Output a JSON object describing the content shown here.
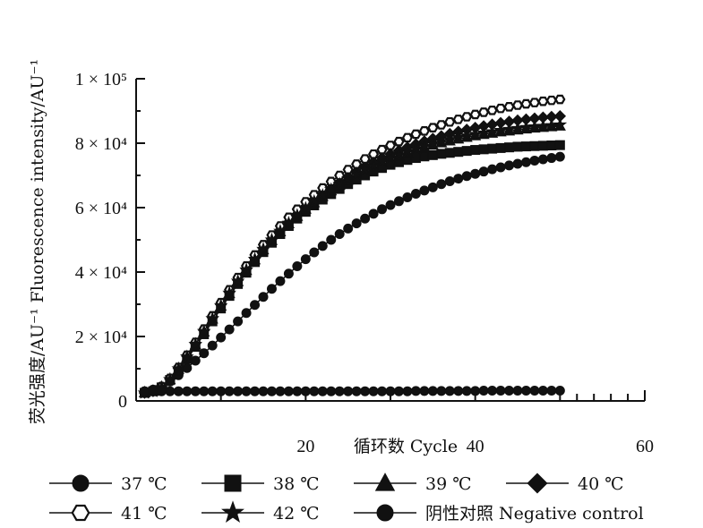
{
  "chart_data": {
    "type": "line",
    "ylabel": "荧光强度/AU⁻¹ Fluorescence intensity/AU⁻¹",
    "xlabel": "循环数 Cycle",
    "xlim": [
      0,
      60
    ],
    "ylim": [
      0,
      100000
    ],
    "y_ticks": [
      {
        "value": 0,
        "label": "0"
      },
      {
        "value": 20000,
        "label": "2 × 10⁴"
      },
      {
        "value": 40000,
        "label": "4 × 10⁴"
      },
      {
        "value": 60000,
        "label": "6 × 10⁴"
      },
      {
        "value": 80000,
        "label": "8 × 10⁴"
      },
      {
        "value": 100000,
        "label": "1 × 10⁵"
      }
    ],
    "x_ticks": [
      {
        "value": 20,
        "label": "20"
      },
      {
        "value": 40,
        "label": "40"
      },
      {
        "value": 60,
        "label": "60"
      }
    ],
    "grid": false,
    "legend_placement": "bottom",
    "x": [
      1,
      2,
      3,
      4,
      5,
      6,
      7,
      8,
      9,
      10,
      11,
      12,
      13,
      14,
      15,
      16,
      17,
      18,
      19,
      20,
      21,
      22,
      23,
      24,
      25,
      26,
      27,
      28,
      29,
      30,
      31,
      32,
      33,
      34,
      35,
      36,
      37,
      38,
      39,
      40,
      41,
      42,
      43,
      44,
      45,
      46,
      47,
      48,
      49,
      50
    ],
    "series": [
      {
        "name": "37 ℃",
        "marker": "circle",
        "values": [
          3000,
          3500,
          4500,
          6000,
          8000,
          10200,
          12500,
          14800,
          17200,
          19700,
          22200,
          24700,
          27300,
          29800,
          32300,
          34800,
          37200,
          39500,
          41800,
          44000,
          46100,
          48100,
          50000,
          51800,
          53500,
          55100,
          56600,
          58100,
          59500,
          60800,
          62000,
          63200,
          64300,
          65300,
          66300,
          67300,
          68200,
          69000,
          69800,
          70500,
          71200,
          71900,
          72500,
          73100,
          73600,
          74100,
          74600,
          75000,
          75400,
          75800
        ]
      },
      {
        "name": "38 ℃",
        "marker": "square",
        "values": [
          2500,
          3000,
          4200,
          6500,
          9500,
          13000,
          16800,
          20700,
          24700,
          28700,
          32600,
          36300,
          39800,
          43100,
          46200,
          49100,
          51800,
          54300,
          56600,
          58700,
          60700,
          62500,
          64200,
          65800,
          67300,
          68700,
          70000,
          71200,
          72300,
          73300,
          74100,
          74800,
          75400,
          75900,
          76300,
          76700,
          77000,
          77300,
          77600,
          77900,
          78100,
          78300,
          78500,
          78700,
          78900,
          79000,
          79100,
          79200,
          79300,
          79400
        ]
      },
      {
        "name": "39 ℃",
        "marker": "triangle",
        "values": [
          2500,
          3000,
          4200,
          6600,
          9800,
          13500,
          17400,
          21400,
          25400,
          29400,
          33300,
          37000,
          40500,
          43800,
          46900,
          49800,
          52500,
          55000,
          57300,
          59500,
          61500,
          63400,
          65200,
          66900,
          68500,
          70000,
          71400,
          72700,
          73900,
          75000,
          76000,
          77000,
          77900,
          78700,
          79400,
          80100,
          80700,
          81300,
          81800,
          82300,
          82700,
          83100,
          83500,
          83800,
          84100,
          84400,
          84700,
          84900,
          85100,
          85300
        ]
      },
      {
        "name": "40 ℃",
        "marker": "diamond",
        "values": [
          2500,
          3000,
          4300,
          6800,
          10100,
          13900,
          17900,
          21900,
          25900,
          29900,
          33800,
          37500,
          41000,
          44300,
          47400,
          50300,
          53000,
          55500,
          57900,
          60100,
          62200,
          64200,
          66100,
          67900,
          69600,
          71200,
          72700,
          74100,
          75400,
          76600,
          77700,
          78700,
          79700,
          80600,
          81400,
          82200,
          82900,
          83600,
          84200,
          84800,
          85300,
          85800,
          86300,
          86700,
          87100,
          87400,
          87700,
          88000,
          88200,
          88400
        ]
      },
      {
        "name": "41 ℃",
        "marker": "hexagon",
        "values": [
          2500,
          3100,
          4400,
          7000,
          10400,
          14200,
          18200,
          22300,
          26400,
          30500,
          34500,
          38300,
          41900,
          45300,
          48500,
          51500,
          54300,
          57000,
          59500,
          61800,
          64000,
          66100,
          68100,
          70000,
          71800,
          73500,
          75100,
          76600,
          78000,
          79300,
          80500,
          81700,
          82800,
          83800,
          84800,
          85700,
          86600,
          87400,
          88200,
          88900,
          89600,
          90200,
          90800,
          91300,
          91800,
          92200,
          92600,
          93000,
          93300,
          93600
        ]
      },
      {
        "name": "42 ℃",
        "marker": "star",
        "values": [
          2500,
          3000,
          4200,
          6700,
          10000,
          13700,
          17600,
          21600,
          25600,
          29600,
          33500,
          37200,
          40700,
          44000,
          47100,
          50000,
          52700,
          55200,
          57600,
          59800,
          61900,
          63800,
          65600,
          67300,
          68900,
          70400,
          71800,
          73100,
          74300,
          75400,
          76400,
          77400,
          78300,
          79100,
          79900,
          80600,
          81200,
          81800,
          82300,
          82800,
          83200,
          83600,
          84000,
          84300,
          84600,
          84900,
          85100,
          85300,
          85500,
          85700
        ]
      },
      {
        "name": "阴性对照 Negative control",
        "marker": "circle",
        "values": [
          3000,
          3000,
          3000,
          3000,
          3000,
          3000,
          3000,
          3000,
          3000,
          3000,
          3000,
          3000,
          3000,
          3000,
          3000,
          3000,
          3000,
          3000,
          3000,
          3000,
          3000,
          3000,
          3000,
          3000,
          3000,
          3000,
          3000,
          3000,
          3000,
          3000,
          3000,
          3000,
          3100,
          3100,
          3100,
          3100,
          3100,
          3100,
          3100,
          3100,
          3200,
          3200,
          3200,
          3200,
          3200,
          3200,
          3200,
          3200,
          3200,
          3200
        ]
      }
    ]
  }
}
